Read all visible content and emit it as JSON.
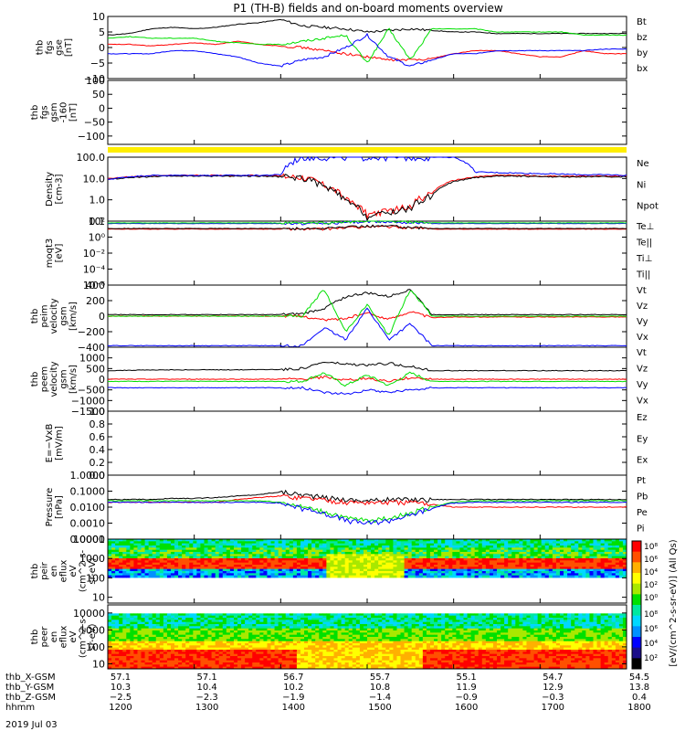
{
  "title": "P1 (TH-B) fields and on-board moments overview",
  "date_label": "2019 Jul 03",
  "colors": {
    "black": "#000000",
    "red": "#ff0000",
    "green": "#00e000",
    "blue": "#0000ff",
    "yellow": "#ffee00"
  },
  "chart_data": [
    {
      "id": "fgs_gse",
      "type": "line",
      "ylabel": [
        "thb",
        "fgs",
        "gse",
        "[nT]"
      ],
      "ylim": [
        -10,
        10
      ],
      "yticks": [
        10,
        5,
        0,
        -5,
        -10
      ],
      "ytick_labels": [
        "10",
        "5",
        "0",
        "−5",
        "−10"
      ],
      "series": [
        {
          "name": "Bt",
          "color": "#000000",
          "values": [
            4,
            4.5,
            6,
            6.5,
            6,
            6.5,
            7.5,
            8,
            9,
            7,
            6.5,
            6,
            5,
            5.5,
            6,
            5.5,
            5,
            5,
            4.5,
            4.5,
            4.5,
            4.5,
            4.5,
            4.5,
            4.5
          ]
        },
        {
          "name": "bz",
          "color": "#ff0000",
          "values": [
            1,
            1,
            0.5,
            1,
            1.5,
            1,
            2,
            1,
            0.5,
            0,
            -1,
            -2,
            -3,
            -4,
            -4,
            -3.5,
            -2,
            -1,
            -1,
            -2,
            -3,
            -3,
            -1,
            -2,
            -2
          ]
        },
        {
          "name": "by",
          "color": "#00e000",
          "values": [
            3,
            3.5,
            3,
            3,
            3,
            2,
            1.5,
            1,
            1,
            2,
            3,
            4,
            -5,
            6,
            -4,
            6,
            6,
            6,
            5,
            5,
            5,
            5,
            4,
            4,
            4
          ]
        },
        {
          "name": "bx",
          "color": "#0000ff",
          "values": [
            -2,
            -2,
            -2,
            -1,
            -1,
            -2,
            -3,
            -5,
            -6,
            -4,
            -3,
            0,
            4,
            -3,
            -6,
            -4,
            -2,
            -2,
            -1,
            -1,
            -1,
            -1,
            -1,
            -0.5,
            -0.5
          ]
        }
      ]
    },
    {
      "id": "fgs_gsm_160",
      "type": "line",
      "ylabel": [
        "thb",
        "fgs",
        "gsm",
        "-160",
        "[nT]"
      ],
      "ylim": [
        -130,
        100
      ],
      "yticks": [
        100,
        50,
        0,
        -50,
        -100
      ],
      "ytick_labels": [
        "100",
        "50",
        "0",
        "−50",
        "−100"
      ],
      "series": []
    },
    {
      "id": "flag_bar",
      "type": "bar",
      "ylabel": [],
      "series": []
    },
    {
      "id": "density",
      "type": "line",
      "log": true,
      "ylabel": [
        "Density",
        "[cm-3]"
      ],
      "ylim": [
        0.1,
        100
      ],
      "yticks": [
        100,
        10,
        1,
        0.1
      ],
      "ytick_labels": [
        "100.0",
        "10.0",
        "1.0",
        "0.1"
      ],
      "series": [
        {
          "name": "Ne",
          "color": "#ff0000",
          "values": [
            10,
            12,
            13,
            14,
            14,
            14,
            14,
            14,
            13,
            12,
            5,
            1,
            0.2,
            0.3,
            0.5,
            2,
            8,
            12,
            14,
            14,
            13,
            13,
            13,
            13,
            13
          ]
        },
        {
          "name": "Ni",
          "color": "#000000",
          "values": [
            9,
            11,
            12,
            13,
            13,
            13,
            13,
            13,
            12,
            11,
            4,
            0.8,
            0.15,
            0.25,
            0.4,
            1.5,
            7,
            11,
            13,
            13,
            12,
            12,
            12,
            12,
            12
          ]
        },
        {
          "name": "Npot",
          "color": "#0000ff",
          "values": [
            9,
            12,
            14,
            14,
            14,
            14,
            14,
            14,
            15,
            100,
            100,
            100,
            100,
            100,
            100,
            100,
            100,
            20,
            19,
            18,
            17,
            16,
            15,
            15,
            14
          ]
        }
      ]
    },
    {
      "id": "moqt3",
      "type": "line",
      "log": true,
      "ylabel": [
        "moqt3",
        "[eV]"
      ],
      "ylim": [
        1e-06,
        100
      ],
      "yticks": [
        100,
        1,
        0.01,
        0.0001,
        1e-06
      ],
      "ytick_labels": [
        "10²",
        "10⁰",
        "10⁻²",
        "10⁻⁴",
        "10⁻⁶"
      ],
      "series": [
        {
          "name": "Te⊥",
          "color": "#ff0000",
          "values": [
            10,
            10,
            10,
            10,
            10,
            10,
            10,
            10,
            10,
            10,
            10,
            15,
            20,
            20,
            15,
            10,
            10,
            10,
            10,
            10,
            10,
            10,
            10,
            10,
            10
          ]
        },
        {
          "name": "Te||",
          "color": "#000000",
          "values": [
            12,
            12,
            12,
            12,
            12,
            12,
            12,
            12,
            12,
            12,
            12,
            18,
            25,
            25,
            18,
            12,
            12,
            12,
            12,
            12,
            12,
            12,
            12,
            12,
            12
          ]
        },
        {
          "name": "Ti⊥",
          "color": "#0000ff",
          "values": [
            50,
            50,
            50,
            50,
            50,
            50,
            50,
            50,
            50,
            50,
            50,
            70,
            90,
            90,
            70,
            50,
            50,
            50,
            50,
            50,
            50,
            50,
            50,
            50,
            50
          ]
        },
        {
          "name": "Ti||",
          "color": "#00e000",
          "values": [
            60,
            60,
            60,
            60,
            60,
            60,
            60,
            60,
            60,
            60,
            60,
            80,
            100,
            100,
            80,
            60,
            60,
            60,
            60,
            60,
            60,
            60,
            60,
            60,
            60
          ]
        }
      ]
    },
    {
      "id": "peim_velocity",
      "type": "line",
      "ylabel": [
        "thb",
        "peim",
        "velocity",
        "gsm",
        "[km/s]"
      ],
      "ylim": [
        -400,
        400
      ],
      "yticks": [
        400,
        200,
        0,
        -200,
        -400
      ],
      "ytick_labels": [
        "400",
        "200",
        "0",
        "−200",
        "−400"
      ],
      "series": [
        {
          "name": "Vt",
          "color": "#000000",
          "values": [
            20,
            20,
            20,
            20,
            20,
            20,
            20,
            20,
            20,
            30,
            100,
            250,
            300,
            250,
            350,
            20,
            20,
            20,
            20,
            20,
            20,
            20,
            20,
            20,
            20
          ]
        },
        {
          "name": "Vz",
          "color": "#ff0000",
          "values": [
            0,
            0,
            0,
            0,
            0,
            0,
            0,
            0,
            0,
            0,
            -50,
            -30,
            40,
            -40,
            60,
            -20,
            -10,
            -10,
            -10,
            -10,
            -10,
            -10,
            -10,
            -10,
            -10
          ]
        },
        {
          "name": "Vy",
          "color": "#00e000",
          "values": [
            0,
            0,
            0,
            0,
            0,
            0,
            0,
            0,
            0,
            0,
            350,
            -200,
            150,
            -250,
            350,
            0,
            0,
            0,
            0,
            0,
            0,
            0,
            0,
            0,
            0
          ]
        },
        {
          "name": "Vx",
          "color": "#0000ff",
          "values": [
            -380,
            -380,
            -380,
            -380,
            -380,
            -380,
            -380,
            -380,
            -380,
            -380,
            -150,
            -300,
            100,
            -300,
            -100,
            -380,
            -380,
            -380,
            -380,
            -380,
            -380,
            -380,
            -380,
            -380,
            -380
          ]
        }
      ]
    },
    {
      "id": "peem_velocity",
      "type": "line",
      "ylabel": [
        "thb",
        "peem",
        "velocity",
        "gsm",
        "[km/s]"
      ],
      "ylim": [
        -1500,
        1500
      ],
      "yticks": [
        1000,
        500,
        0,
        -500,
        -1000,
        -1500
      ],
      "ytick_labels": [
        "1000",
        "500",
        "0",
        "−500",
        "−1000",
        "−1500"
      ],
      "series": [
        {
          "name": "Vt",
          "color": "#000000",
          "values": [
            400,
            420,
            430,
            440,
            440,
            440,
            440,
            450,
            460,
            500,
            800,
            700,
            650,
            750,
            600,
            400,
            400,
            400,
            400,
            400,
            400,
            400,
            400,
            400,
            400
          ]
        },
        {
          "name": "Vz",
          "color": "#ff0000",
          "values": [
            0,
            0,
            0,
            0,
            0,
            0,
            0,
            0,
            0,
            0,
            100,
            -50,
            50,
            -100,
            80,
            0,
            0,
            0,
            0,
            0,
            0,
            0,
            0,
            0,
            0
          ]
        },
        {
          "name": "Vy",
          "color": "#00e000",
          "values": [
            -100,
            -100,
            -100,
            -100,
            -100,
            -100,
            -100,
            -100,
            -100,
            -100,
            300,
            -300,
            200,
            -300,
            300,
            -100,
            -100,
            -100,
            -100,
            -100,
            -100,
            -100,
            -100,
            -100,
            -100
          ]
        },
        {
          "name": "Vx",
          "color": "#0000ff",
          "values": [
            -400,
            -400,
            -400,
            -400,
            -400,
            -400,
            -400,
            -400,
            -400,
            -400,
            -600,
            -700,
            -500,
            -600,
            -500,
            -400,
            -400,
            -400,
            -400,
            -400,
            -400,
            -400,
            -400,
            -400,
            -400
          ]
        }
      ]
    },
    {
      "id": "efield",
      "type": "line",
      "ylabel": [
        "E=−VxB",
        "[mV/m]"
      ],
      "ylim": [
        0,
        1
      ],
      "yticks": [
        1.0,
        0.8,
        0.6,
        0.4,
        0.2,
        0.0
      ],
      "ytick_labels": [
        "1.0",
        "0.8",
        "0.6",
        "0.4",
        "0.2",
        "0.0"
      ],
      "series": [
        {
          "name": "Ez",
          "color": "#ff0000",
          "values": []
        },
        {
          "name": "Ey",
          "color": "#00e000",
          "values": []
        },
        {
          "name": "Ex",
          "color": "#0000ff",
          "values": []
        }
      ]
    },
    {
      "id": "pressure",
      "type": "line",
      "log": true,
      "ylabel": [
        "Pressure",
        "[nPa]"
      ],
      "ylim": [
        0.0001,
        1
      ],
      "yticks": [
        1,
        0.1,
        0.01,
        0.001,
        0.0001
      ],
      "ytick_labels": [
        "1.0000",
        "0.1000",
        "0.0100",
        "0.0010",
        "0.0001"
      ],
      "series": [
        {
          "name": "Pt",
          "color": "#000000",
          "values": [
            0.03,
            0.03,
            0.03,
            0.035,
            0.035,
            0.04,
            0.05,
            0.06,
            0.09,
            0.06,
            0.04,
            0.03,
            0.025,
            0.03,
            0.03,
            0.03,
            0.03,
            0.03,
            0.03,
            0.03,
            0.03,
            0.03,
            0.03,
            0.03,
            0.03
          ]
        },
        {
          "name": "Pb",
          "color": "#ff0000",
          "values": [
            0.02,
            0.02,
            0.02,
            0.02,
            0.02,
            0.02,
            0.03,
            0.04,
            0.05,
            0.04,
            0.03,
            0.02,
            0.02,
            0.02,
            0.02,
            0.015,
            0.01,
            0.01,
            0.01,
            0.01,
            0.01,
            0.01,
            0.01,
            0.01,
            0.01
          ]
        },
        {
          "name": "Pe",
          "color": "#00e000",
          "values": [
            0.025,
            0.025,
            0.025,
            0.025,
            0.025,
            0.025,
            0.025,
            0.025,
            0.02,
            0.01,
            0.005,
            0.002,
            0.0015,
            0.002,
            0.004,
            0.01,
            0.02,
            0.025,
            0.025,
            0.025,
            0.025,
            0.025,
            0.025,
            0.025,
            0.025
          ]
        },
        {
          "name": "Pi",
          "color": "#0000ff",
          "values": [
            0.02,
            0.02,
            0.02,
            0.02,
            0.02,
            0.02,
            0.02,
            0.02,
            0.018,
            0.008,
            0.004,
            0.0015,
            0.001,
            0.0015,
            0.003,
            0.008,
            0.018,
            0.02,
            0.02,
            0.02,
            0.02,
            0.02,
            0.02,
            0.02,
            0.02
          ]
        }
      ]
    },
    {
      "id": "peir_eflux",
      "type": "heatmap",
      "log": true,
      "ylabel": [
        "thb",
        "peir",
        "en",
        "eflux",
        "eV",
        "(cm^2-s-",
        "sr-eV)"
      ],
      "ylim": [
        5,
        10000
      ],
      "yticks": [
        10000,
        1000,
        100,
        10
      ],
      "ytick_labels": [
        "10000",
        "1000",
        "100",
        "10"
      ]
    },
    {
      "id": "peer_eflux",
      "type": "heatmap",
      "log": true,
      "ylabel": [
        "thb",
        "peer",
        "en",
        "eflux",
        "eV",
        "(cm^2-s-",
        "sr-eV)"
      ],
      "ylim": [
        5,
        30000
      ],
      "yticks": [
        10000,
        1000,
        100,
        10
      ],
      "ytick_labels": [
        "10000",
        "1000",
        "100",
        "10"
      ]
    }
  ],
  "colorbar": {
    "label": "[eV/(cm^2-s-sr-eV)] (All Qs)",
    "ticks_top": [
      "10⁸",
      "10⁶",
      "10⁴",
      "10²",
      "10⁰"
    ],
    "ticks_bottom": [
      "10⁸",
      "10⁶",
      "10⁴",
      "10²"
    ]
  },
  "x_axis": {
    "row_labels": [
      "thb_X-GSM",
      "thb_Y-GSM",
      "thb_Z-GSM",
      "hhmm"
    ],
    "columns": [
      {
        "x": "57.1",
        "y": "10.3",
        "z": "−2.5",
        "t": "1200"
      },
      {
        "x": "57.1",
        "y": "10.4",
        "z": "−2.3",
        "t": "1300"
      },
      {
        "x": "56.7",
        "y": "10.2",
        "z": "−1.9",
        "t": "1400"
      },
      {
        "x": "55.7",
        "y": "10.8",
        "z": "−1.4",
        "t": "1500"
      },
      {
        "x": "55.1",
        "y": "11.9",
        "z": "−0.9",
        "t": "1600"
      },
      {
        "x": "54.7",
        "y": "12.9",
        "z": "−0.3",
        "t": "1700"
      },
      {
        "x": "54.5",
        "y": "13.8",
        "z": "0.4",
        "t": "1800"
      }
    ]
  }
}
